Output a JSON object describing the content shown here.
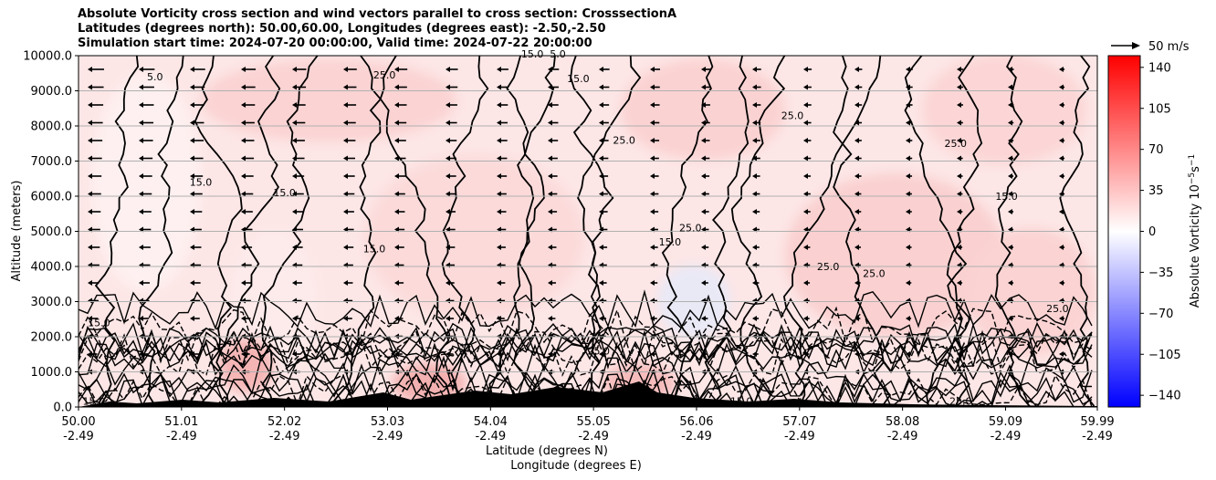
{
  "chart_data": {
    "type": "heatmap",
    "title_lines": [
      "Absolute Vorticity cross section and wind vectors parallel to cross section: CrosssectionA",
      "Latitudes (degrees north): 50.00,60.00, Longitudes (degrees east): -2.50,-2.50",
      "Simulation start time: 2024-07-20 00:00:00, Valid time: 2024-07-22 20:00:00"
    ],
    "ylabel": "Altitude (meters)",
    "xlabel_lines": [
      "Latitude (degrees N)",
      "Longitude (degrees E)"
    ],
    "x_ticks": [
      {
        "lat": "50.00",
        "lon": "-2.49",
        "value": 50.0
      },
      {
        "lat": "51.01",
        "lon": "-2.49",
        "value": 51.01
      },
      {
        "lat": "52.02",
        "lon": "-2.49",
        "value": 52.02
      },
      {
        "lat": "53.03",
        "lon": "-2.49",
        "value": 53.03
      },
      {
        "lat": "54.04",
        "lon": "-2.49",
        "value": 54.04
      },
      {
        "lat": "55.05",
        "lon": "-2.49",
        "value": 55.05
      },
      {
        "lat": "56.06",
        "lon": "-2.49",
        "value": 56.06
      },
      {
        "lat": "57.07",
        "lon": "-2.49",
        "value": 57.07
      },
      {
        "lat": "58.08",
        "lon": "-2.49",
        "value": 58.08
      },
      {
        "lat": "59.09",
        "lon": "-2.49",
        "value": 59.09
      },
      {
        "lat": "59.99",
        "lon": "-2.49",
        "value": 59.99
      }
    ],
    "xlim": [
      50.0,
      59.99
    ],
    "y_ticks": [
      "0.0",
      "1000.0",
      "2000.0",
      "3000.0",
      "4000.0",
      "5000.0",
      "6000.0",
      "7000.0",
      "8000.0",
      "9000.0",
      "10000.0"
    ],
    "ylim": [
      0,
      10000
    ],
    "grid": "horizontal",
    "colorbar": {
      "label": "Absolute Vorticity 10$^{-5}$s$^{-1}$",
      "label_text": "Absolute Vorticity 10",
      "label_sup": "−5",
      "label_unit": "s",
      "label_unit_sup": "−1",
      "range": [
        -150,
        150
      ],
      "ticks": [
        "140",
        "105",
        "70",
        "35",
        "0",
        "−35",
        "−70",
        "−105",
        "−140"
      ],
      "tick_values": [
        140,
        105,
        70,
        35,
        0,
        -35,
        -70,
        -105,
        -140
      ],
      "colormap": [
        "#0000ff",
        "#ffffff",
        "#ff0000"
      ]
    },
    "quiver_key": {
      "label": "50 m/s"
    },
    "contour_levels": [
      5.0,
      15.0,
      25.0,
      35.0
    ],
    "contour_labels": [
      {
        "text": "15.0",
        "lat": 54.45,
        "alt": 9950
      },
      {
        "text": "5.0",
        "lat": 54.7,
        "alt": 9950
      },
      {
        "text": "25.0",
        "lat": 55.35,
        "alt": 7500
      },
      {
        "text": "15.0",
        "lat": 52.02,
        "alt": 6000
      },
      {
        "text": "25.0",
        "lat": 56.0,
        "alt": 5000
      },
      {
        "text": "15.0",
        "lat": 55.8,
        "alt": 4600
      },
      {
        "text": "15.0",
        "lat": 59.1,
        "alt": 5900
      },
      {
        "text": "25.0",
        "lat": 57.35,
        "alt": 3900
      },
      {
        "text": "25.0",
        "lat": 57.8,
        "alt": 3700
      },
      {
        "text": "25.0",
        "lat": 55.1,
        "alt": 1500
      },
      {
        "text": "15.0",
        "lat": 50.15,
        "alt": 60
      },
      {
        "text": "15.0",
        "lat": 56.5,
        "alt": 60
      },
      {
        "text": "25.0",
        "lat": 58.65,
        "alt": 60
      },
      {
        "text": "25.0",
        "lat": 59.6,
        "alt": 2700
      },
      {
        "text": "15.0",
        "lat": 50.2,
        "alt": 2300
      },
      {
        "text": "5.0",
        "lat": 50.75,
        "alt": 9300
      },
      {
        "text": "25.0",
        "lat": 53.0,
        "alt": 9350
      },
      {
        "text": "15.0",
        "lat": 54.9,
        "alt": 9250
      },
      {
        "text": "25.0",
        "lat": 57.0,
        "alt": 8200
      },
      {
        "text": "15.0",
        "lat": 52.9,
        "alt": 4400
      },
      {
        "text": "15.0",
        "lat": 51.2,
        "alt": 6300
      },
      {
        "text": "25.0",
        "lat": 58.6,
        "alt": 7400
      }
    ]
  }
}
